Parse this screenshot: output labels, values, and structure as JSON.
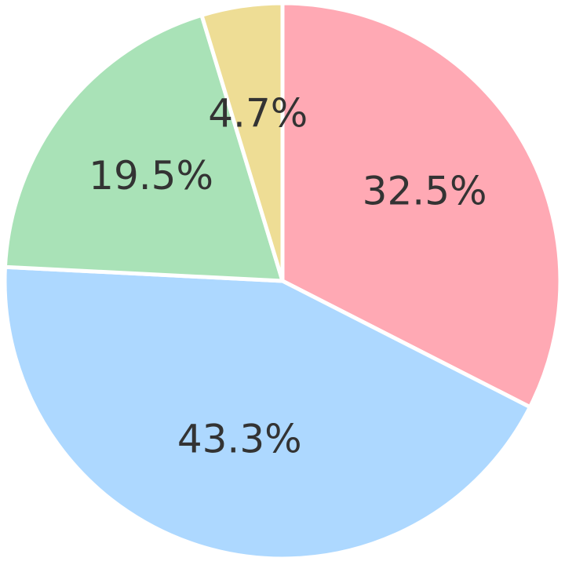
{
  "chart_data": {
    "type": "pie",
    "title": "",
    "legend": "none",
    "start_angle_deg": 0,
    "direction": "clockwise",
    "slices": [
      {
        "value": 32.5,
        "label": "32.5%",
        "color": "#FFA9B4"
      },
      {
        "value": 43.3,
        "label": "43.3%",
        "color": "#ADD8FF"
      },
      {
        "value": 19.5,
        "label": "19.5%",
        "color": "#A9E2B7"
      },
      {
        "value": 4.7,
        "label": "4.7%",
        "color": "#EEDD95"
      }
    ]
  }
}
